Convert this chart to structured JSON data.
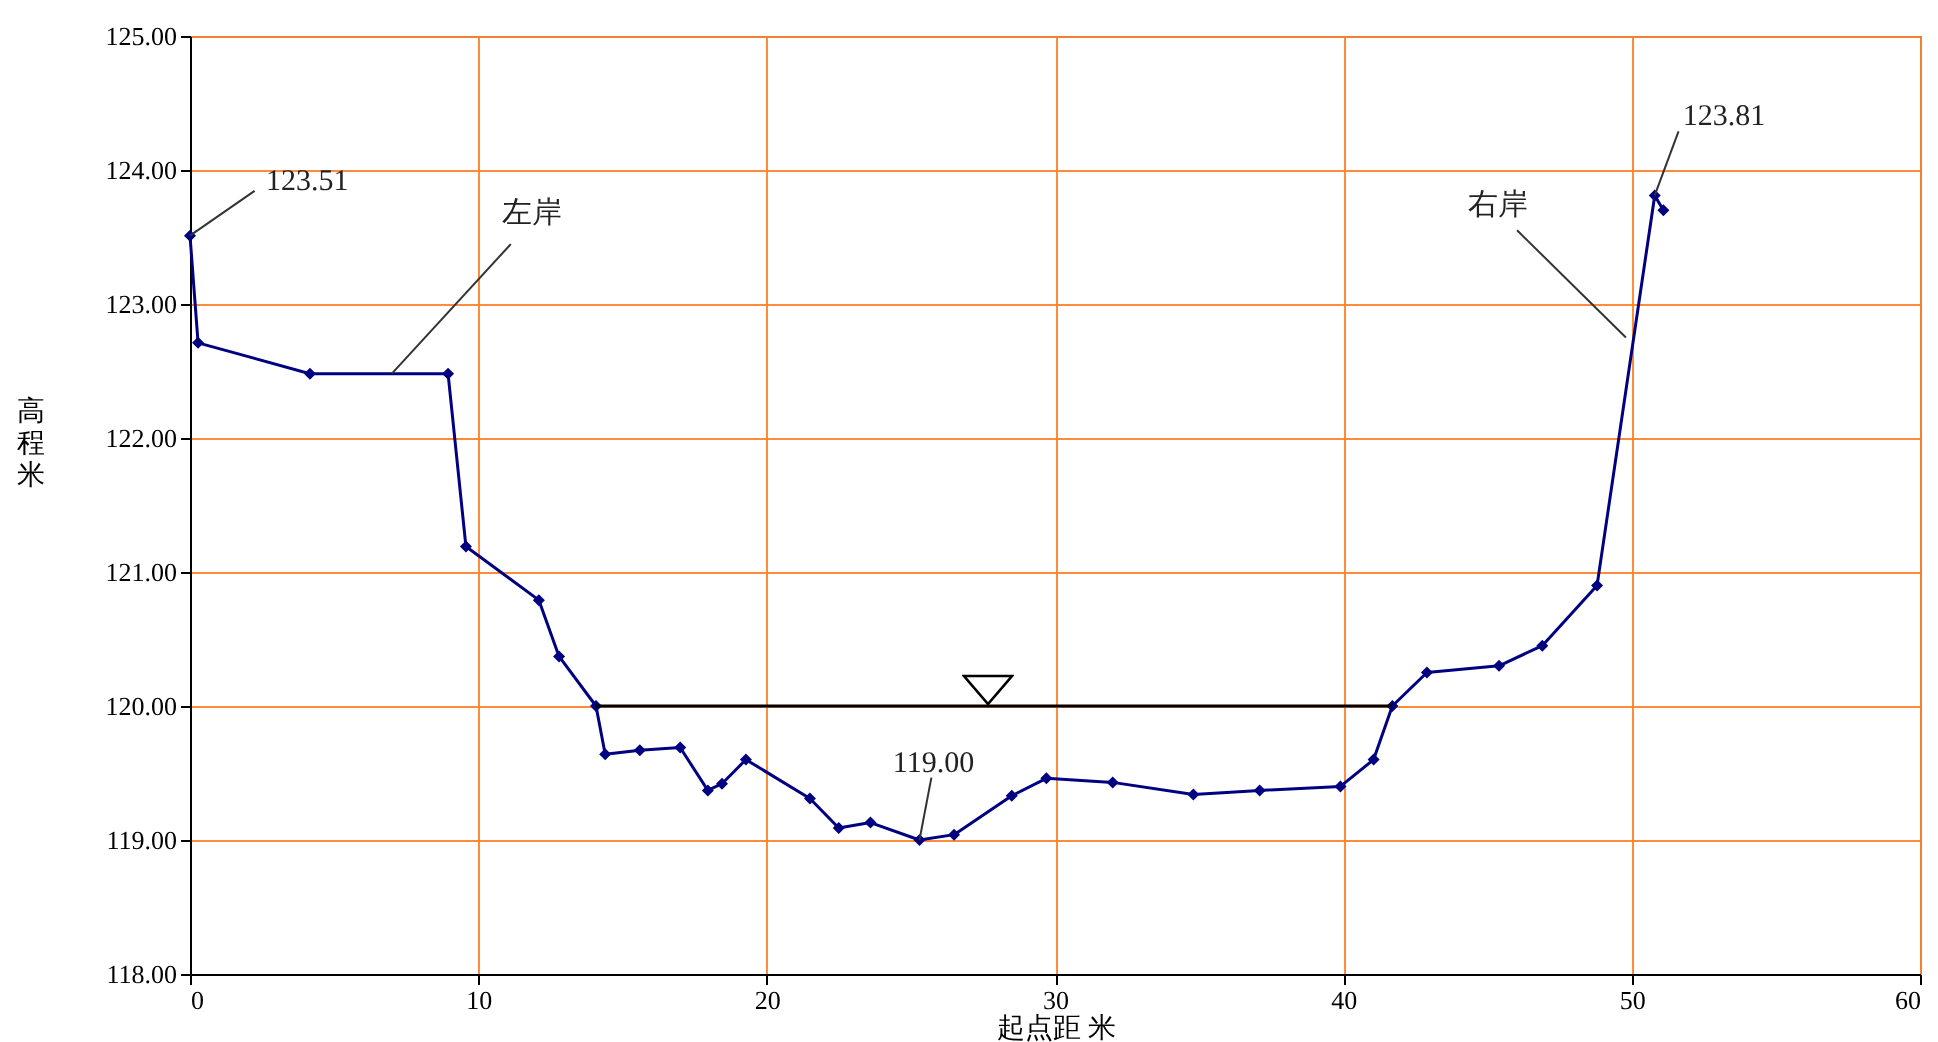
{
  "chart_data": {
    "type": "line",
    "xlabel": "起点距 米",
    "ylabel": "高程米",
    "series": [
      {
        "color": "#000080",
        "marker": "diamond",
        "x": [
          0,
          0.28,
          4.16,
          8.95,
          9.57,
          12.1,
          12.8,
          14.08,
          14.4,
          15.6,
          17.0,
          17.96,
          18.45,
          19.28,
          21.5,
          22.5,
          23.6,
          25.3,
          26.5,
          28.5,
          29.7,
          32.0,
          34.8,
          37.1,
          39.9,
          41.05,
          41.7,
          42.9,
          45.4,
          46.9,
          48.8,
          50.8,
          51.1
        ],
        "values": [
          123.51,
          122.71,
          122.48,
          122.48,
          121.19,
          120.79,
          120.37,
          120.0,
          119.64,
          119.67,
          119.69,
          119.37,
          119.42,
          119.6,
          119.31,
          119.09,
          119.13,
          119.0,
          119.04,
          119.33,
          119.46,
          119.43,
          119.34,
          119.37,
          119.4,
          119.6,
          120.0,
          120.25,
          120.3,
          120.45,
          120.9,
          123.81,
          123.7
        ]
      },
      {
        "color": "#000000",
        "marker": "none",
        "x": [
          14.08,
          41.7
        ],
        "values": [
          120.0,
          120.0
        ]
      }
    ],
    "annotations": [
      {
        "text": "123.51",
        "x": 0,
        "y": 123.51
      },
      {
        "text": "左岸",
        "x": 7,
        "y": 122.48
      },
      {
        "text": "右岸",
        "x": 49.8,
        "y": 122.75
      },
      {
        "text": "123.81",
        "x": 50.8,
        "y": 123.81
      },
      {
        "text": "119.00",
        "x": 25.3,
        "y": 119.0
      }
    ],
    "xlim": [
      0,
      60
    ],
    "xticks": [
      0,
      10,
      20,
      30,
      40,
      50,
      60
    ],
    "ylim": [
      118,
      125
    ],
    "yticks": [
      {
        "value": 118,
        "label": "118.00"
      },
      {
        "value": 119,
        "label": "119.00"
      },
      {
        "value": 120,
        "label": "120.00"
      },
      {
        "value": 121,
        "label": "121.00"
      },
      {
        "value": 122,
        "label": "122.00"
      },
      {
        "value": 123,
        "label": "123.00"
      },
      {
        "value": 124,
        "label": "124.00"
      },
      {
        "value": 125,
        "label": "125.00"
      }
    ],
    "grid": true
  }
}
